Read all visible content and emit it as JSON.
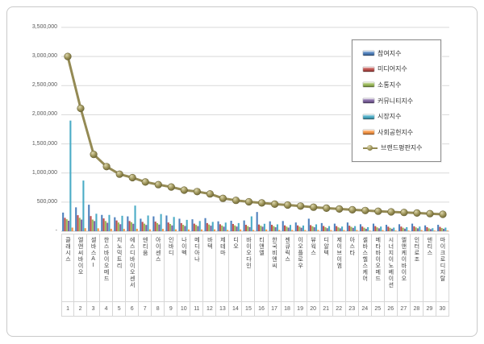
{
  "window": {
    "background": "#ffffff",
    "frame_border": "#c9c9c9"
  },
  "chart_data": {
    "type": "bar",
    "subtype": "grouped-bars-with-line-overlay",
    "title": "",
    "grid": true,
    "legend_position": "top-right-inside",
    "categories": [
      "클래시스",
      "엘앤씨바이오",
      "셀바스AI",
      "한스바이오메드",
      "지노믹트리",
      "에스디바이오센서",
      "덴티움",
      "아이센스",
      "인바디",
      "나이벡",
      "메디아나",
      "바텍",
      "제테마",
      "디오",
      "바이오다인",
      "티앤엘",
      "한국비엔씨",
      "젠큐릭스",
      "이오플로우",
      "뷰웍스",
      "디알텍",
      "제이브이엠",
      "아스타",
      "셀바스헬스케어",
      "메타바이오메드",
      "시너지이노베이션",
      "엘앤케이바이오",
      "인터로조",
      "덴티스",
      "마이크로디지탈"
    ],
    "category_numbers": [
      "1",
      "2",
      "3",
      "4",
      "5",
      "6",
      "7",
      "8",
      "9",
      "10",
      "11",
      "12",
      "13",
      "14",
      "15",
      "16",
      "17",
      "18",
      "19",
      "20",
      "21",
      "22",
      "23",
      "24",
      "25",
      "26",
      "27",
      "28",
      "29",
      "30"
    ],
    "y_axis": {
      "min": 0,
      "max": 3500000,
      "tick_interval": 500000,
      "tick_labels": [
        "-",
        "500,000",
        "1,000,000",
        "1,500,000",
        "2,000,000",
        "2,500,000",
        "3,000,000",
        "3,500,000"
      ]
    },
    "series": [
      {
        "key": "participation-index",
        "name": "참여지수",
        "type": "bar",
        "color": "#4F81BD",
        "values": [
          320000,
          410000,
          455000,
          280000,
          240000,
          255000,
          215000,
          255000,
          270000,
          215000,
          205000,
          225000,
          170000,
          180000,
          185000,
          330000,
          170000,
          175000,
          150000,
          215000,
          140000,
          130000,
          150000,
          120000,
          130000,
          110000,
          120000,
          130000,
          100000,
          110000
        ]
      },
      {
        "key": "media-index",
        "name": "미디어지수",
        "type": "bar",
        "color": "#C0504D",
        "values": [
          230000,
          275000,
          260000,
          220000,
          185000,
          175000,
          160000,
          165000,
          150000,
          140000,
          130000,
          140000,
          120000,
          125000,
          110000,
          115000,
          110000,
          100000,
          100000,
          105000,
          90000,
          88000,
          95000,
          80000,
          88000,
          78000,
          80000,
          85000,
          70000,
          75000
        ]
      },
      {
        "key": "communication-index",
        "name": "소통지수",
        "type": "bar",
        "color": "#9BBB59",
        "values": [
          205000,
          230000,
          200000,
          175000,
          150000,
          155000,
          130000,
          140000,
          125000,
          110000,
          108000,
          115000,
          98000,
          100000,
          88000,
          95000,
          88000,
          80000,
          78000,
          85000,
          68000,
          66000,
          75000,
          60000,
          66000,
          58000,
          60000,
          65000,
          50000,
          55000
        ]
      },
      {
        "key": "community-index",
        "name": "커뮤니티지수",
        "type": "bar",
        "color": "#8064A2",
        "values": [
          180000,
          200000,
          175000,
          145000,
          120000,
          128000,
          108000,
          115000,
          100000,
          90000,
          88000,
          95000,
          78000,
          80000,
          70000,
          78000,
          68000,
          62000,
          60000,
          68000,
          52000,
          50000,
          58000,
          42000,
          50000,
          42000,
          44000,
          50000,
          35000,
          42000
        ]
      },
      {
        "key": "market-index",
        "name": "시장지수",
        "type": "bar",
        "color": "#4BACC6",
        "values": [
          1900000,
          870000,
          300000,
          280000,
          265000,
          440000,
          270000,
          295000,
          245000,
          195000,
          175000,
          160000,
          148000,
          140000,
          255000,
          128000,
          118000,
          108000,
          98000,
          118000,
          88000,
          80000,
          88000,
          70000,
          80000,
          62000,
          70000,
          80000,
          52000,
          62000
        ]
      },
      {
        "key": "csr-index",
        "name": "사회공헌지수",
        "type": "bar",
        "color": "#F79646",
        "values": [
          62000,
          52000,
          50000,
          42000,
          40000,
          42000,
          32000,
          40000,
          32000,
          30000,
          30000,
          32000,
          22000,
          30000,
          22000,
          30000,
          22000,
          22000,
          20000,
          22000,
          20000,
          20000,
          20000,
          12000,
          20000,
          12000,
          12000,
          20000,
          12000,
          12000
        ]
      },
      {
        "key": "brand-reputation-index",
        "name": "브랜드평판지수",
        "type": "line",
        "color": "#948A54",
        "values": [
          3000000,
          2110000,
          1320000,
          1110000,
          980000,
          920000,
          845000,
          800000,
          760000,
          705000,
          680000,
          640000,
          565000,
          530000,
          505000,
          485000,
          465000,
          450000,
          432000,
          412000,
          396000,
          382000,
          368000,
          355000,
          343000,
          332000,
          322000,
          312000,
          301000,
          291000
        ]
      }
    ],
    "colors": {
      "gridline": "#d9d9d9",
      "axis_line": "#bfbfbf",
      "tick_text": "#595959",
      "line_marker_edge": "#6b6436"
    }
  }
}
